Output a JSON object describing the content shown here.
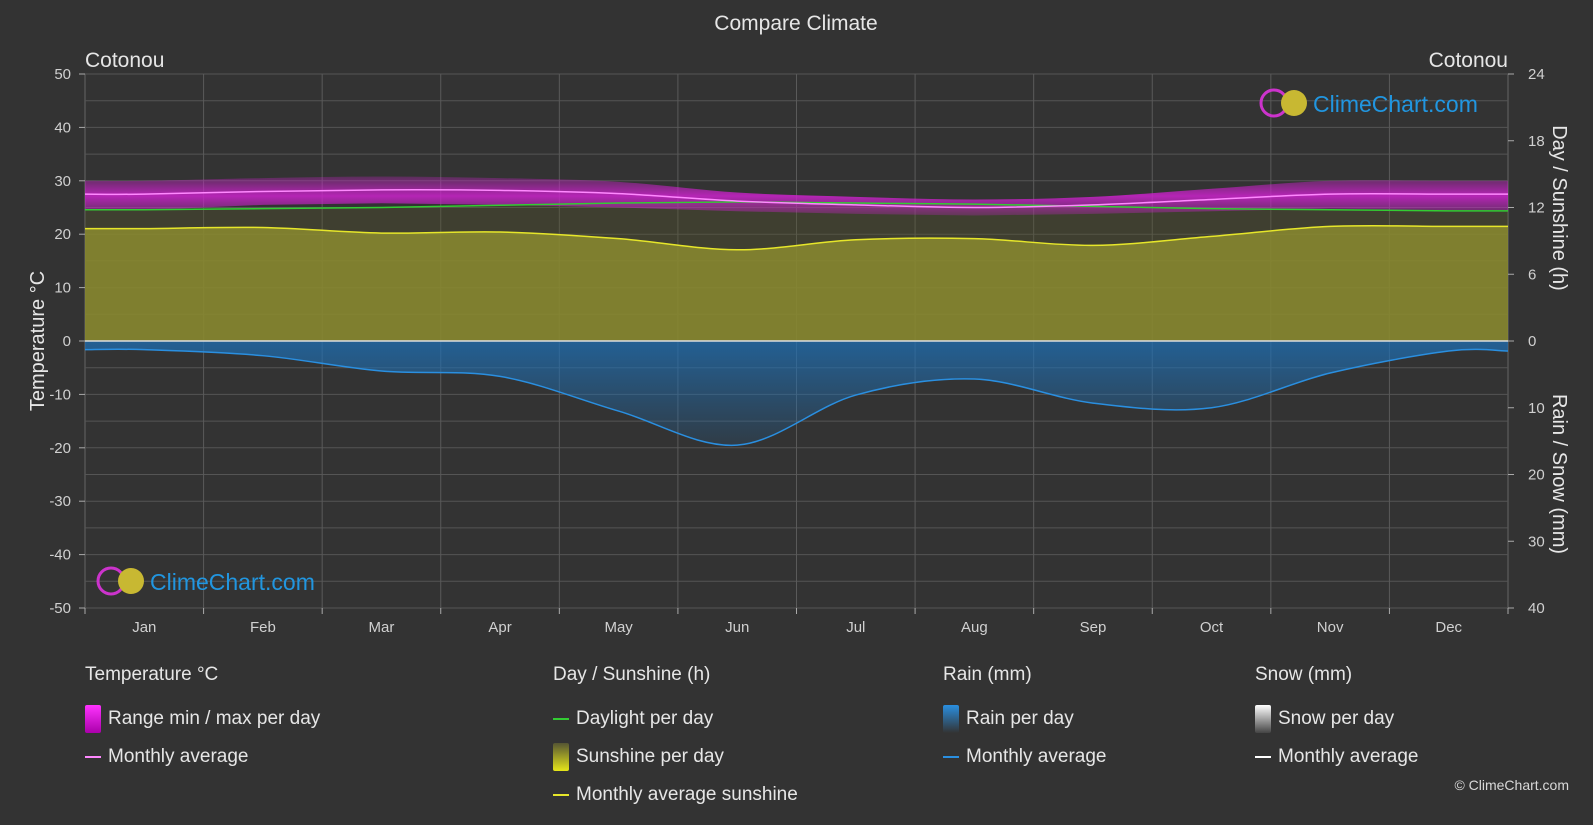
{
  "title": "Compare Climate",
  "city_left": "Cotonou",
  "city_right": "Cotonou",
  "axis_left_label": "Temperature °C",
  "axis_right_top_label": "Day / Sunshine (h)",
  "axis_right_bottom_label": "Rain / Snow (mm)",
  "watermark": "ClimeChart.com",
  "copyright": "© ClimeChart.com",
  "colors": {
    "background": "#333333",
    "temp_range": "#cc22cc",
    "temp_avg": "#ff88ff",
    "daylight": "#33cc33",
    "sunshine_fill": "#a8a832",
    "sunshine_avg": "#e6e62a",
    "rain": "#1e6fb4",
    "rain_avg": "#2a8fe0",
    "snow_avg": "#ffffff",
    "brand_blue": "#2196e0"
  },
  "legend": {
    "temperature": {
      "title": "Temperature °C",
      "range": "Range min / max per day",
      "avg": "Monthly average"
    },
    "sunshine": {
      "title": "Day / Sunshine (h)",
      "daylight": "Daylight per day",
      "sunshine": "Sunshine per day",
      "avg": "Monthly average sunshine"
    },
    "rain": {
      "title": "Rain (mm)",
      "per_day": "Rain per day",
      "avg": "Monthly average"
    },
    "snow": {
      "title": "Snow (mm)",
      "per_day": "Snow per day",
      "avg": "Monthly average"
    }
  },
  "chart_data": {
    "type": "line",
    "categories": [
      "Jan",
      "Feb",
      "Mar",
      "Apr",
      "May",
      "Jun",
      "Jul",
      "Aug",
      "Sep",
      "Oct",
      "Nov",
      "Dec"
    ],
    "y_left": {
      "label": "Temperature °C",
      "range": [
        -50,
        50
      ],
      "ticks": [
        50,
        40,
        30,
        20,
        10,
        0,
        -10,
        -20,
        -30,
        -40,
        -50
      ]
    },
    "y_right_top": {
      "label": "Day / Sunshine (h)",
      "range": [
        0,
        24
      ],
      "ticks": [
        24,
        18,
        12,
        6,
        0
      ]
    },
    "y_right_bottom": {
      "label": "Rain / Snow (mm)",
      "range": [
        0,
        40
      ],
      "ticks": [
        0,
        10,
        20,
        30,
        40
      ]
    },
    "series": [
      {
        "name": "Daylight per day",
        "unit": "h",
        "values": [
          11.8,
          11.9,
          12.0,
          12.2,
          12.4,
          12.5,
          12.4,
          12.3,
          12.1,
          11.9,
          11.8,
          11.7
        ]
      },
      {
        "name": "Monthly average sunshine",
        "unit": "h",
        "values": [
          10.1,
          10.2,
          9.7,
          9.8,
          9.2,
          8.2,
          9.1,
          9.2,
          8.6,
          9.4,
          10.3,
          10.3
        ]
      },
      {
        "name": "Monthly average",
        "group": "Temperature °C",
        "unit": "°C",
        "values": [
          27.5,
          28.0,
          28.3,
          28.2,
          27.6,
          26.2,
          25.5,
          25.0,
          25.5,
          26.5,
          27.5,
          27.5
        ]
      },
      {
        "name": "Range min / max per day",
        "group": "Temperature °C",
        "unit": "°C",
        "min": [
          24.5,
          25.5,
          25.8,
          25.5,
          25.0,
          24.3,
          23.8,
          23.5,
          23.8,
          24.3,
          24.8,
          24.5
        ],
        "max": [
          30.0,
          30.5,
          30.8,
          30.5,
          29.8,
          27.8,
          27.0,
          26.5,
          27.0,
          28.5,
          30.0,
          30.0
        ]
      },
      {
        "name": "Monthly average",
        "group": "Rain (mm)",
        "unit": "mm",
        "values": [
          1.3,
          2.2,
          4.5,
          5.3,
          10.5,
          15.6,
          8.1,
          5.7,
          9.3,
          10.0,
          4.8,
          1.5
        ]
      },
      {
        "name": "Monthly average",
        "group": "Snow (mm)",
        "unit": "mm",
        "values": [
          0,
          0,
          0,
          0,
          0,
          0,
          0,
          0,
          0,
          0,
          0,
          0
        ]
      }
    ],
    "grid": true
  }
}
